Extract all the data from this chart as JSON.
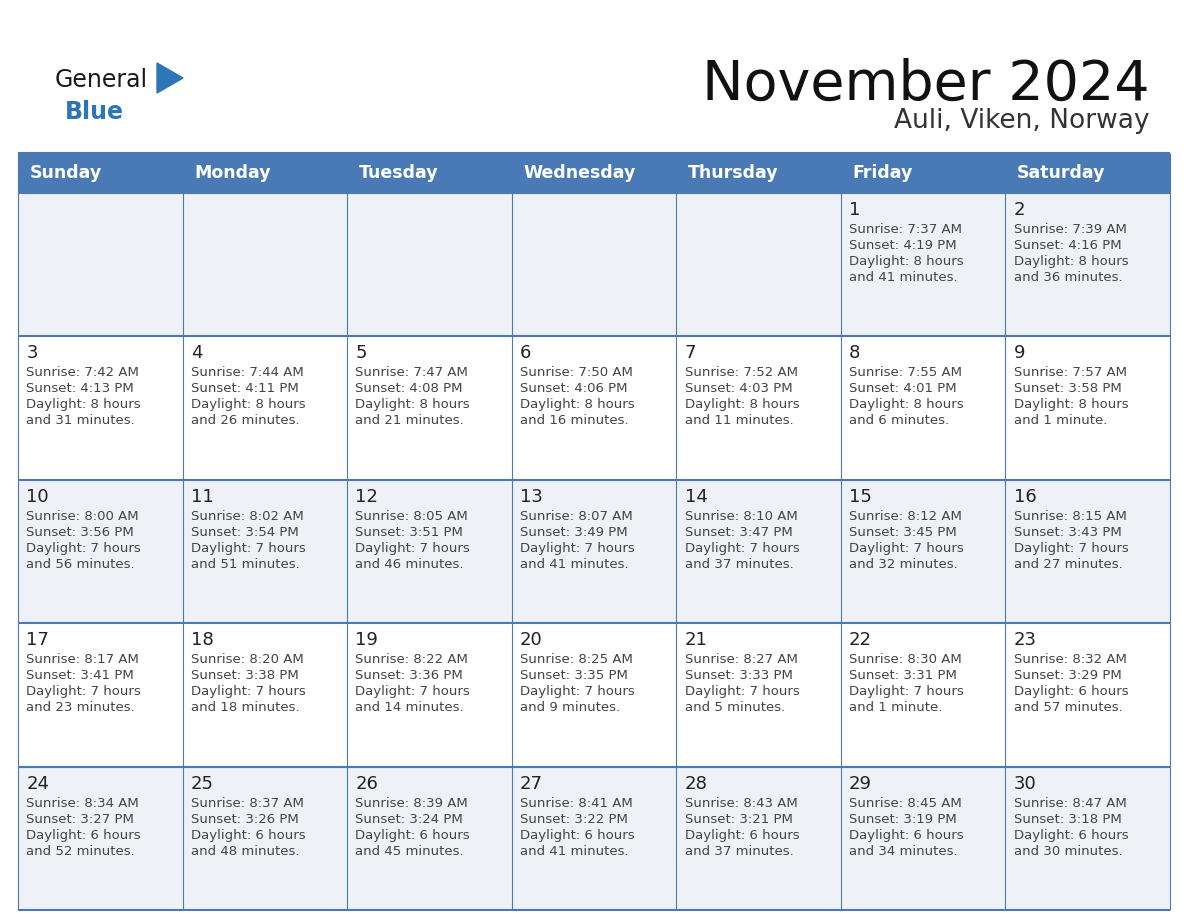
{
  "title": "November 2024",
  "subtitle": "Auli, Viken, Norway",
  "days_of_week": [
    "Sunday",
    "Monday",
    "Tuesday",
    "Wednesday",
    "Thursday",
    "Friday",
    "Saturday"
  ],
  "header_bg": "#4a7ab5",
  "header_text": "#ffffff",
  "cell_bg_light": "#eef1f5",
  "cell_bg_white": "#ffffff",
  "day_num_color": "#222222",
  "cell_text_color": "#444444",
  "line_color": "#4a7ab5",
  "title_color": "#111111",
  "subtitle_color": "#333333",
  "logo_general_color": "#1a1a1a",
  "logo_blue_color": "#2e75b6",
  "weeks": [
    [
      {
        "day": null,
        "sunrise": null,
        "sunset": null,
        "daylight": null
      },
      {
        "day": null,
        "sunrise": null,
        "sunset": null,
        "daylight": null
      },
      {
        "day": null,
        "sunrise": null,
        "sunset": null,
        "daylight": null
      },
      {
        "day": null,
        "sunrise": null,
        "sunset": null,
        "daylight": null
      },
      {
        "day": null,
        "sunrise": null,
        "sunset": null,
        "daylight": null
      },
      {
        "day": 1,
        "sunrise": "7:37 AM",
        "sunset": "4:19 PM",
        "daylight": "8 hours\nand 41 minutes."
      },
      {
        "day": 2,
        "sunrise": "7:39 AM",
        "sunset": "4:16 PM",
        "daylight": "8 hours\nand 36 minutes."
      }
    ],
    [
      {
        "day": 3,
        "sunrise": "7:42 AM",
        "sunset": "4:13 PM",
        "daylight": "8 hours\nand 31 minutes."
      },
      {
        "day": 4,
        "sunrise": "7:44 AM",
        "sunset": "4:11 PM",
        "daylight": "8 hours\nand 26 minutes."
      },
      {
        "day": 5,
        "sunrise": "7:47 AM",
        "sunset": "4:08 PM",
        "daylight": "8 hours\nand 21 minutes."
      },
      {
        "day": 6,
        "sunrise": "7:50 AM",
        "sunset": "4:06 PM",
        "daylight": "8 hours\nand 16 minutes."
      },
      {
        "day": 7,
        "sunrise": "7:52 AM",
        "sunset": "4:03 PM",
        "daylight": "8 hours\nand 11 minutes."
      },
      {
        "day": 8,
        "sunrise": "7:55 AM",
        "sunset": "4:01 PM",
        "daylight": "8 hours\nand 6 minutes."
      },
      {
        "day": 9,
        "sunrise": "7:57 AM",
        "sunset": "3:58 PM",
        "daylight": "8 hours\nand 1 minute."
      }
    ],
    [
      {
        "day": 10,
        "sunrise": "8:00 AM",
        "sunset": "3:56 PM",
        "daylight": "7 hours\nand 56 minutes."
      },
      {
        "day": 11,
        "sunrise": "8:02 AM",
        "sunset": "3:54 PM",
        "daylight": "7 hours\nand 51 minutes."
      },
      {
        "day": 12,
        "sunrise": "8:05 AM",
        "sunset": "3:51 PM",
        "daylight": "7 hours\nand 46 minutes."
      },
      {
        "day": 13,
        "sunrise": "8:07 AM",
        "sunset": "3:49 PM",
        "daylight": "7 hours\nand 41 minutes."
      },
      {
        "day": 14,
        "sunrise": "8:10 AM",
        "sunset": "3:47 PM",
        "daylight": "7 hours\nand 37 minutes."
      },
      {
        "day": 15,
        "sunrise": "8:12 AM",
        "sunset": "3:45 PM",
        "daylight": "7 hours\nand 32 minutes."
      },
      {
        "day": 16,
        "sunrise": "8:15 AM",
        "sunset": "3:43 PM",
        "daylight": "7 hours\nand 27 minutes."
      }
    ],
    [
      {
        "day": 17,
        "sunrise": "8:17 AM",
        "sunset": "3:41 PM",
        "daylight": "7 hours\nand 23 minutes."
      },
      {
        "day": 18,
        "sunrise": "8:20 AM",
        "sunset": "3:38 PM",
        "daylight": "7 hours\nand 18 minutes."
      },
      {
        "day": 19,
        "sunrise": "8:22 AM",
        "sunset": "3:36 PM",
        "daylight": "7 hours\nand 14 minutes."
      },
      {
        "day": 20,
        "sunrise": "8:25 AM",
        "sunset": "3:35 PM",
        "daylight": "7 hours\nand 9 minutes."
      },
      {
        "day": 21,
        "sunrise": "8:27 AM",
        "sunset": "3:33 PM",
        "daylight": "7 hours\nand 5 minutes."
      },
      {
        "day": 22,
        "sunrise": "8:30 AM",
        "sunset": "3:31 PM",
        "daylight": "7 hours\nand 1 minute."
      },
      {
        "day": 23,
        "sunrise": "8:32 AM",
        "sunset": "3:29 PM",
        "daylight": "6 hours\nand 57 minutes."
      }
    ],
    [
      {
        "day": 24,
        "sunrise": "8:34 AM",
        "sunset": "3:27 PM",
        "daylight": "6 hours\nand 52 minutes."
      },
      {
        "day": 25,
        "sunrise": "8:37 AM",
        "sunset": "3:26 PM",
        "daylight": "6 hours\nand 48 minutes."
      },
      {
        "day": 26,
        "sunrise": "8:39 AM",
        "sunset": "3:24 PM",
        "daylight": "6 hours\nand 45 minutes."
      },
      {
        "day": 27,
        "sunrise": "8:41 AM",
        "sunset": "3:22 PM",
        "daylight": "6 hours\nand 41 minutes."
      },
      {
        "day": 28,
        "sunrise": "8:43 AM",
        "sunset": "3:21 PM",
        "daylight": "6 hours\nand 37 minutes."
      },
      {
        "day": 29,
        "sunrise": "8:45 AM",
        "sunset": "3:19 PM",
        "daylight": "6 hours\nand 34 minutes."
      },
      {
        "day": 30,
        "sunrise": "8:47 AM",
        "sunset": "3:18 PM",
        "daylight": "6 hours\nand 30 minutes."
      }
    ]
  ]
}
